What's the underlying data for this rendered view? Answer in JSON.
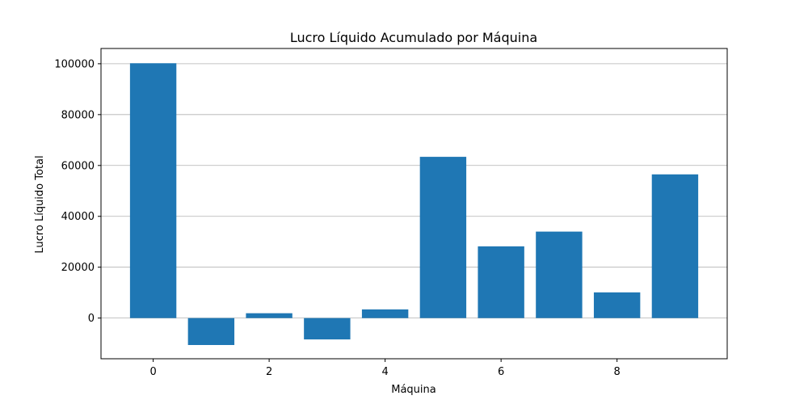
{
  "chart_data": {
    "type": "bar",
    "title": "Lucro Líquido Acumulado por Máquina",
    "xlabel": "Máquina",
    "ylabel": "Lucro Líquido Total",
    "categories": [
      0,
      1,
      2,
      3,
      4,
      5,
      6,
      7,
      8,
      9
    ],
    "values": [
      100200,
      -10600,
      1900,
      -8400,
      3400,
      63400,
      28200,
      34000,
      10100,
      56500
    ],
    "xlim": [
      -0.9,
      9.9
    ],
    "ylim": [
      -16000,
      106000
    ],
    "xticks": [
      0,
      2,
      4,
      6,
      8
    ],
    "yticks": [
      0,
      20000,
      40000,
      60000,
      80000,
      100000
    ],
    "xtick_labels": [
      "0",
      "2",
      "4",
      "6",
      "8"
    ],
    "ytick_labels": [
      "0",
      "20000",
      "40000",
      "60000",
      "80000",
      "100000"
    ],
    "bar_color": "#1f77b4",
    "grid": "y-axis horizontal gridlines",
    "grid_color": "#b0b0b0",
    "legend": "none"
  }
}
